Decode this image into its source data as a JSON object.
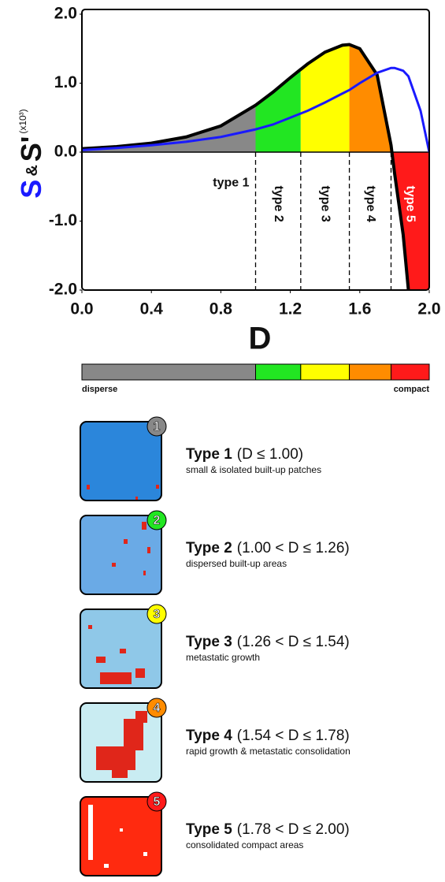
{
  "chart_data": {
    "type": "line",
    "x": [
      0,
      0.2,
      0.4,
      0.6,
      0.8,
      1.0,
      1.1,
      1.2,
      1.26,
      1.3,
      1.4,
      1.5,
      1.54,
      1.6,
      1.7,
      1.78,
      1.8,
      1.85,
      1.88,
      1.95,
      2.0
    ],
    "series": [
      {
        "name": "S",
        "color": "#000000",
        "values": [
          0.05,
          0.08,
          0.13,
          0.22,
          0.38,
          0.68,
          0.87,
          1.08,
          1.2,
          1.28,
          1.45,
          1.55,
          1.56,
          1.5,
          1.12,
          0.1,
          -0.3,
          -1.2,
          -2.0,
          null,
          null
        ]
      },
      {
        "name": "S'",
        "color": "#1a1aff",
        "values": [
          0.03,
          0.06,
          0.1,
          0.15,
          0.22,
          0.33,
          0.4,
          0.5,
          0.56,
          0.6,
          0.72,
          0.85,
          0.9,
          1.0,
          1.15,
          1.22,
          1.22,
          1.18,
          1.1,
          0.6,
          0.0
        ]
      }
    ],
    "y_label": [
      "S",
      "&",
      "S'",
      "(x10³)"
    ],
    "x_label": "D",
    "xlim": [
      0,
      2
    ],
    "ylim": [
      -2,
      2
    ],
    "xticks": [
      {
        "value": 0,
        "label": "0.0"
      },
      {
        "value": 0.4,
        "label": "0.4"
      },
      {
        "value": 0.8,
        "label": "0.8"
      },
      {
        "value": 1.2,
        "label": "1.2"
      },
      {
        "value": 1.6,
        "label": "1.6"
      },
      {
        "value": 2,
        "label": "2.0"
      }
    ],
    "yticks": [
      {
        "value": 2,
        "label": "2.0"
      },
      {
        "value": 1,
        "label": "1.0"
      },
      {
        "value": 0,
        "label": "0.0"
      },
      {
        "value": -1,
        "label": "-1.0"
      },
      {
        "value": -2,
        "label": "-2.0"
      }
    ],
    "regions": [
      {
        "label": "type 1",
        "from": 0,
        "to": 1.0,
        "color": "#888888"
      },
      {
        "label": "type 2",
        "from": 1.0,
        "to": 1.26,
        "color": "#22e622"
      },
      {
        "label": "type 3",
        "from": 1.26,
        "to": 1.54,
        "color": "#ffff00"
      },
      {
        "label": "type 4",
        "from": 1.54,
        "to": 1.78,
        "color": "#ff8c00"
      },
      {
        "label": "type 5",
        "from": 1.78,
        "to": 2.0,
        "color": "#ff1a1a"
      }
    ]
  },
  "scale_bar": {
    "left": "disperse",
    "right": "compact"
  },
  "types": [
    {
      "number": "1",
      "name": "Type 1",
      "condition": "(D ≤ 1.00)",
      "description": "small & isolated built-up patches"
    },
    {
      "number": "2",
      "name": "Type 2",
      "condition": "(1.00 < D ≤ 1.26)",
      "description": "dispersed built-up areas"
    },
    {
      "number": "3",
      "name": "Type 3",
      "condition": "(1.26 < D ≤ 1.54)",
      "description": "metastatic growth"
    },
    {
      "number": "4",
      "name": "Type 4",
      "condition": "(1.54 < D ≤ 1.78)",
      "description": "rapid growth & metastatic consolidation"
    },
    {
      "number": "5",
      "name": "Type 5",
      "condition": "(1.78 < D ≤ 2.00)",
      "description": "consolidated compact areas"
    }
  ]
}
